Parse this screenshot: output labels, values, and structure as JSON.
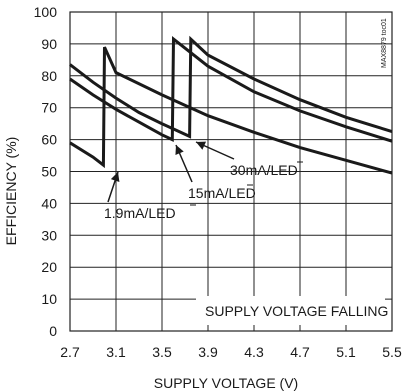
{
  "chart_data": {
    "type": "line",
    "xlabel": "SUPPLY VOLTAGE (V)",
    "ylabel": "EFFICIENCY (%)",
    "xlim": [
      2.7,
      5.5
    ],
    "ylim": [
      0,
      100
    ],
    "xticks": [
      "2.7",
      "3.1",
      "3.5",
      "3.9",
      "4.3",
      "4.7",
      "5.1",
      "5.5"
    ],
    "yticks": [
      "0",
      "10",
      "20",
      "30",
      "40",
      "50",
      "60",
      "70",
      "80",
      "90",
      "100"
    ],
    "grid": true,
    "note": "SUPPLY VOLTAGE FALLING",
    "side_code": "MAX8879 toc01",
    "series": [
      {
        "name": "1.9mA/LED",
        "points": [
          [
            5.5,
            49.5
          ],
          [
            5.1,
            53.5
          ],
          [
            4.7,
            57.5
          ],
          [
            4.3,
            62.3
          ],
          [
            3.9,
            67.5
          ],
          [
            3.5,
            74
          ],
          [
            3.1,
            81
          ],
          [
            3.0,
            89
          ],
          [
            2.99,
            52
          ],
          [
            2.9,
            54.5
          ],
          [
            2.7,
            59
          ]
        ]
      },
      {
        "name": "15mA/LED",
        "points": [
          [
            5.5,
            59.5
          ],
          [
            5.1,
            64
          ],
          [
            4.7,
            69
          ],
          [
            4.3,
            75
          ],
          [
            3.9,
            83
          ],
          [
            3.6,
            91.5
          ],
          [
            3.59,
            60
          ],
          [
            3.5,
            61.5
          ],
          [
            3.3,
            65.5
          ],
          [
            3.1,
            69.5
          ],
          [
            2.9,
            74
          ],
          [
            2.7,
            79
          ]
        ]
      },
      {
        "name": "30mA/LED",
        "points": [
          [
            5.5,
            62.5
          ],
          [
            5.1,
            67
          ],
          [
            4.7,
            72.5
          ],
          [
            4.3,
            79
          ],
          [
            3.9,
            86.5
          ],
          [
            3.75,
            91.5
          ],
          [
            3.74,
            61
          ],
          [
            3.5,
            65
          ],
          [
            3.3,
            68.5
          ],
          [
            3.1,
            73
          ],
          [
            2.9,
            78
          ],
          [
            2.7,
            83.5
          ]
        ]
      }
    ],
    "annotations": [
      {
        "text": "1.9mA/LED",
        "series": "1.9mA/LED"
      },
      {
        "text": "15mA/LED",
        "series": "15mA/LED"
      },
      {
        "text": "30mA/LED",
        "series": "30mA/LED"
      }
    ]
  }
}
